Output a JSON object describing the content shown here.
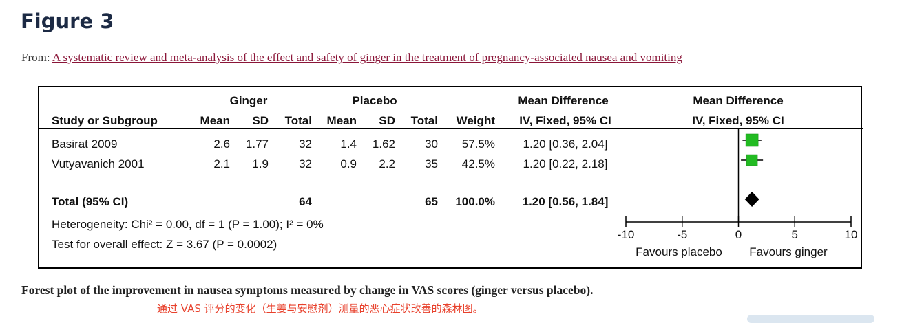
{
  "page": {
    "figure_title": "Figure 3",
    "from_label": "From:",
    "from_link": "A systematic review and meta-analysis of the effect and safety of ginger in the treatment of pregnancy-associated nausea and vomiting",
    "caption": "Forest plot of the improvement in nausea symptoms measured by change in VAS scores (ginger versus placebo).",
    "caption_translation": "通过 VAS 评分的变化（生姜与安慰剂）测量的恶心症状改善的森林图。"
  },
  "colors": {
    "title": "#1c2a44",
    "link": "#8a1538",
    "marker": "#22bb22",
    "translation": "#e8412c"
  },
  "chart_data": {
    "type": "forest",
    "header": {
      "group1": "Ginger",
      "group2": "Placebo",
      "effect": "Mean Difference",
      "plot_title": "Mean Difference",
      "study_col": "Study or Subgroup",
      "mean1": "Mean",
      "sd1": "SD",
      "total1": "Total",
      "mean2": "Mean",
      "sd2": "SD",
      "total2": "Total",
      "weight": "Weight",
      "method": "IV, Fixed, 95% CI",
      "plot_method": "IV, Fixed, 95% CI"
    },
    "studies": [
      {
        "name": "Basirat 2009",
        "mean1": "2.6",
        "sd1": "1.77",
        "total1": "32",
        "mean2": "1.4",
        "sd2": "1.62",
        "total2": "30",
        "weight": "57.5%",
        "ci_text": "1.20 [0.36, 2.04]",
        "md": 1.2,
        "lo": 0.36,
        "hi": 2.04,
        "weight_value": 57.5
      },
      {
        "name": "Vutyavanich 2001",
        "mean1": "2.1",
        "sd1": "1.9",
        "total1": "32",
        "mean2": "0.9",
        "sd2": "2.2",
        "total2": "35",
        "weight": "42.5%",
        "ci_text": "1.20 [0.22, 2.18]",
        "md": 1.2,
        "lo": 0.22,
        "hi": 2.18,
        "weight_value": 42.5
      }
    ],
    "total": {
      "name": "Total (95% CI)",
      "total1": "64",
      "total2": "65",
      "weight": "100.0%",
      "ci_text": "1.20 [0.56, 1.84]",
      "md": 1.2,
      "lo": 0.56,
      "hi": 1.84
    },
    "heterogeneity": "Heterogeneity: Chi² = 0.00, df = 1 (P = 1.00); I² = 0%",
    "overall_effect": "Test for overall effect: Z = 3.67 (P = 0.0002)",
    "xlim": [
      -10,
      10
    ],
    "x_ticks": [
      -10,
      -5,
      0,
      5,
      10
    ],
    "x_tick_labels": [
      "-10",
      "-5",
      "0",
      "5",
      "10"
    ],
    "favours_left": "Favours placebo",
    "favours_right": "Favours ginger"
  }
}
